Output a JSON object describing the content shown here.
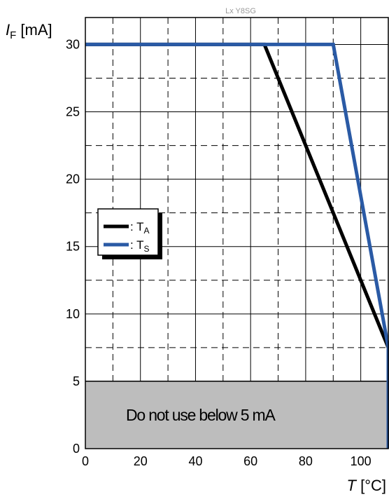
{
  "chart_data": {
    "type": "line",
    "watermark": "Lx Y8SG",
    "ylabel": {
      "italic": "I",
      "sub": "F",
      "unit": " [mA]"
    },
    "xlabel": {
      "italic": "T",
      "unit": " [°C]"
    },
    "xlim": [
      0,
      110
    ],
    "ylim": [
      0,
      32
    ],
    "x_ticks": [
      0,
      20,
      40,
      60,
      80,
      100
    ],
    "y_ticks": [
      0,
      5,
      10,
      15,
      20,
      25,
      30
    ],
    "grid": "solid at major ticks, dashed at minor ticks",
    "series": [
      {
        "name_main": "T",
        "name_sub": "A",
        "color": "#000000",
        "points": [
          [
            0,
            30
          ],
          [
            65,
            30
          ],
          [
            110,
            7.5
          ],
          [
            110,
            5
          ]
        ]
      },
      {
        "name_main": "T",
        "name_sub": "S",
        "color": "#2a5aa5",
        "points": [
          [
            0,
            30
          ],
          [
            90,
            30
          ],
          [
            110,
            7.5
          ],
          [
            110,
            0
          ]
        ]
      }
    ],
    "legend": {
      "placement": "left-middle",
      "prefix": ": "
    },
    "forbidden_zone": {
      "y_from": 0,
      "y_to": 5,
      "color": "#bdbdbd",
      "label": "Do not use below 5 mA"
    }
  }
}
